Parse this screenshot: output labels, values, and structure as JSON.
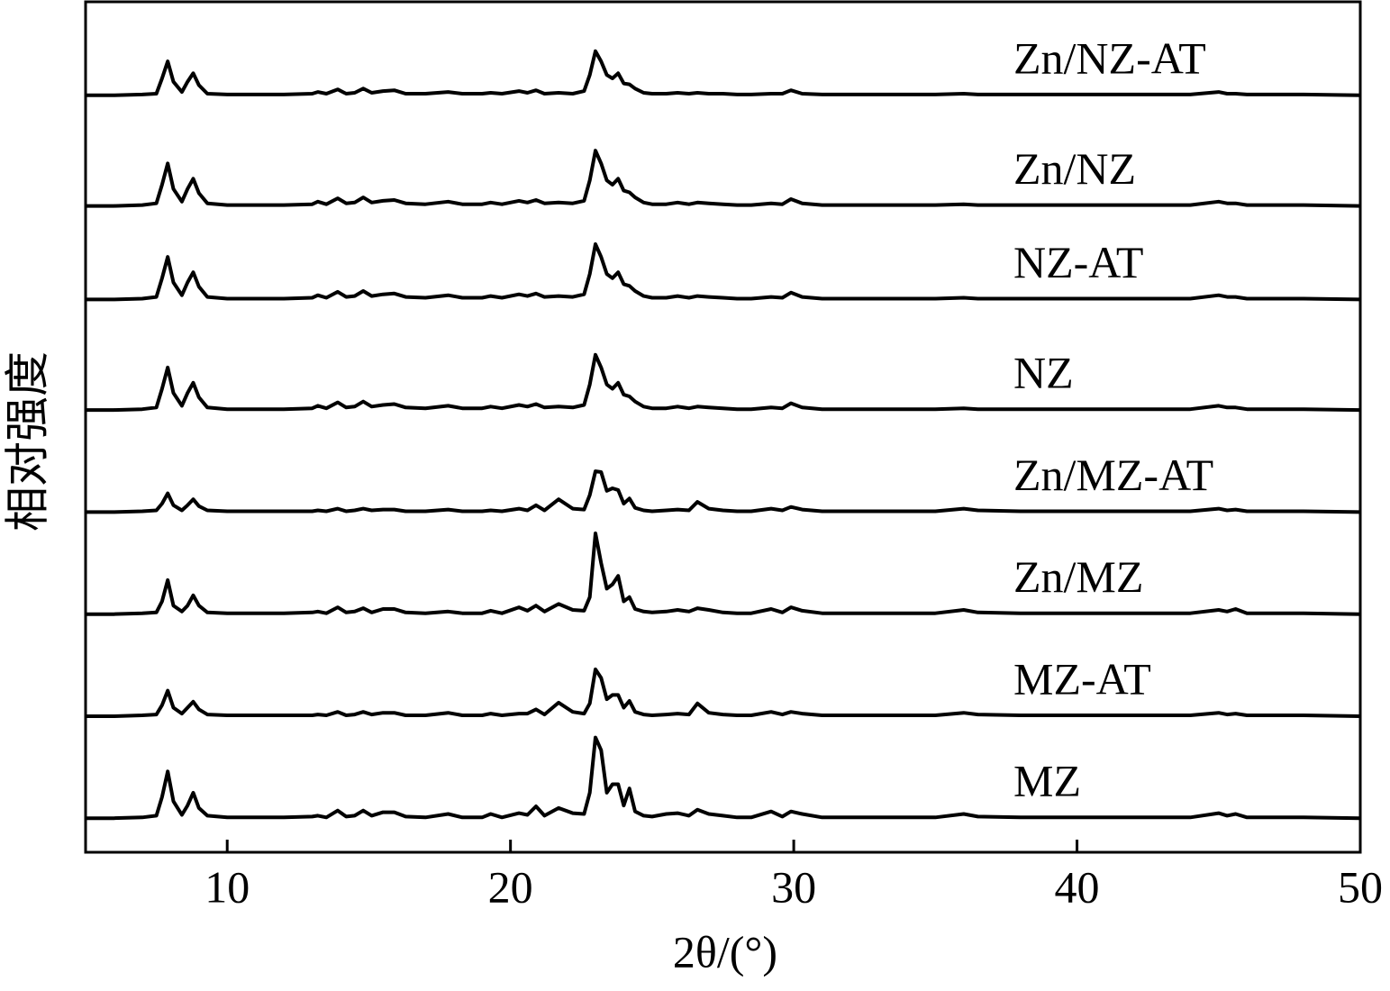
{
  "chart_data": {
    "type": "line",
    "x_label": "2θ/(°)",
    "y_label": "相对强度",
    "xlim": [
      5,
      50
    ],
    "xticks": [
      10,
      20,
      30,
      40,
      50
    ],
    "ylim": [
      0,
      100
    ],
    "x": [
      5,
      6,
      7,
      7.5,
      7.7,
      7.9,
      8.1,
      8.4,
      8.6,
      8.8,
      9,
      9.3,
      10,
      11,
      12,
      13,
      13.2,
      13.5,
      13.9,
      14.2,
      14.5,
      14.8,
      15.1,
      15.5,
      15.9,
      16.3,
      17,
      17.8,
      18.3,
      19,
      19.3,
      19.7,
      20.3,
      20.6,
      20.9,
      21.2,
      21.7,
      22.2,
      22.6,
      22.8,
      23,
      23.2,
      23.4,
      23.6,
      23.8,
      24,
      24.2,
      24.4,
      24.7,
      25,
      25.5,
      25.9,
      26.3,
      26.6,
      27,
      27.5,
      28,
      28.5,
      29.2,
      29.6,
      29.9,
      30.3,
      31,
      32,
      33,
      34,
      35,
      36,
      36.5,
      38,
      40,
      42,
      44,
      45,
      45.3,
      45.6,
      46,
      48,
      50
    ],
    "series": [
      {
        "name": "Zn/NZ-AT",
        "color": "#000000",
        "values": [
          89,
          89,
          89.1,
          89.2,
          91,
          93,
          90.6,
          89.4,
          90.6,
          91.6,
          90.2,
          89.2,
          89.1,
          89.1,
          89.1,
          89.2,
          89.4,
          89.2,
          89.7,
          89.2,
          89.3,
          89.8,
          89.3,
          89.5,
          89.6,
          89.2,
          89.2,
          89.4,
          89.2,
          89.2,
          89.3,
          89.2,
          89.5,
          89.3,
          89.6,
          89.2,
          89.3,
          89.2,
          89.5,
          91.4,
          94.2,
          93,
          91.4,
          91,
          91.6,
          90.4,
          90.3,
          89.8,
          89.3,
          89.2,
          89.2,
          89.3,
          89.2,
          89.3,
          89.2,
          89.2,
          89.1,
          89.1,
          89.2,
          89.2,
          89.6,
          89.2,
          89.1,
          89.1,
          89.1,
          89.1,
          89.1,
          89.2,
          89.1,
          89.1,
          89.1,
          89.1,
          89.1,
          89.4,
          89.2,
          89.2,
          89.1,
          89.1,
          89
        ]
      },
      {
        "name": "Zn/NZ",
        "color": "#000000",
        "values": [
          76,
          76,
          76.1,
          76.3,
          78.5,
          81,
          78,
          76.5,
          78,
          79.2,
          77.5,
          76.3,
          76.1,
          76.1,
          76.1,
          76.2,
          76.5,
          76.2,
          76.9,
          76.3,
          76.4,
          77,
          76.4,
          76.6,
          76.7,
          76.3,
          76.2,
          76.5,
          76.2,
          76.2,
          76.4,
          76.2,
          76.6,
          76.4,
          76.7,
          76.3,
          76.4,
          76.3,
          76.6,
          79,
          82.5,
          81,
          79,
          78.5,
          79.2,
          77.8,
          77.6,
          77,
          76.4,
          76.2,
          76.2,
          76.4,
          76.2,
          76.4,
          76.3,
          76.2,
          76.1,
          76.1,
          76.3,
          76.2,
          76.8,
          76.3,
          76.1,
          76.1,
          76.1,
          76.1,
          76.1,
          76.2,
          76.1,
          76.1,
          76.1,
          76.1,
          76.1,
          76.5,
          76.3,
          76.3,
          76.1,
          76.1,
          76
        ]
      },
      {
        "name": "NZ-AT",
        "color": "#000000",
        "values": [
          65,
          65,
          65.1,
          65.3,
          67.5,
          70,
          67,
          65.5,
          67,
          68.2,
          66.5,
          65.3,
          65.1,
          65.1,
          65.1,
          65.2,
          65.5,
          65.2,
          65.9,
          65.3,
          65.4,
          66,
          65.4,
          65.6,
          65.7,
          65.3,
          65.2,
          65.5,
          65.2,
          65.2,
          65.4,
          65.2,
          65.6,
          65.4,
          65.7,
          65.3,
          65.4,
          65.3,
          65.6,
          68,
          71.5,
          70,
          68,
          67.5,
          68.2,
          66.8,
          66.6,
          66,
          65.4,
          65.2,
          65.2,
          65.4,
          65.2,
          65.4,
          65.3,
          65.2,
          65.1,
          65.1,
          65.3,
          65.2,
          65.8,
          65.3,
          65.1,
          65.1,
          65.1,
          65.1,
          65.1,
          65.2,
          65.1,
          65.1,
          65.1,
          65.1,
          65.1,
          65.5,
          65.3,
          65.3,
          65.1,
          65.1,
          65
        ]
      },
      {
        "name": "NZ",
        "color": "#000000",
        "values": [
          52,
          52,
          52.1,
          52.3,
          54.5,
          57,
          54,
          52.5,
          54,
          55.2,
          53.5,
          52.3,
          52.1,
          52.1,
          52.1,
          52.2,
          52.5,
          52.2,
          52.9,
          52.3,
          52.4,
          53,
          52.4,
          52.6,
          52.7,
          52.3,
          52.2,
          52.5,
          52.2,
          52.2,
          52.4,
          52.2,
          52.6,
          52.4,
          52.7,
          52.3,
          52.4,
          52.3,
          52.6,
          55,
          58.5,
          57,
          55,
          54.5,
          55.2,
          53.8,
          53.6,
          53,
          52.4,
          52.2,
          52.2,
          52.4,
          52.2,
          52.4,
          52.3,
          52.2,
          52.1,
          52.1,
          52.3,
          52.2,
          52.8,
          52.3,
          52.1,
          52.1,
          52.1,
          52.1,
          52.1,
          52.2,
          52.1,
          52.1,
          52.1,
          52.1,
          52.1,
          52.5,
          52.3,
          52.3,
          52.1,
          52.1,
          52
        ]
      },
      {
        "name": "Zn/MZ-AT",
        "color": "#000000",
        "values": [
          40,
          40,
          40.1,
          40.2,
          41,
          42.2,
          40.8,
          40.2,
          40.8,
          41.5,
          40.7,
          40.2,
          40.1,
          40.1,
          40.1,
          40.1,
          40.2,
          40.1,
          40.4,
          40.1,
          40.2,
          40.4,
          40.2,
          40.3,
          40.3,
          40.1,
          40.1,
          40.3,
          40.1,
          40.1,
          40.2,
          40.1,
          40.4,
          40.2,
          40.8,
          40.2,
          41.5,
          40.4,
          40.3,
          42,
          44.8,
          44.7,
          42.5,
          42.8,
          42.6,
          41,
          41.6,
          40.5,
          40.2,
          40.1,
          40.2,
          40.3,
          40.2,
          41.2,
          40.4,
          40.2,
          40.1,
          40.1,
          40.4,
          40.2,
          40.6,
          40.3,
          40.1,
          40.1,
          40.1,
          40.1,
          40.1,
          40.4,
          40.2,
          40.1,
          40.1,
          40.1,
          40.1,
          40.4,
          40.2,
          40.3,
          40.1,
          40.1,
          40
        ]
      },
      {
        "name": "Zn/MZ",
        "color": "#000000",
        "values": [
          28,
          28,
          28.1,
          28.2,
          29.5,
          32,
          29,
          28.3,
          29,
          30.2,
          29,
          28.2,
          28.1,
          28.1,
          28.1,
          28.2,
          28.3,
          28.1,
          28.8,
          28.2,
          28.3,
          28.7,
          28.2,
          28.6,
          28.6,
          28.2,
          28.1,
          28.3,
          28.1,
          28.1,
          28.4,
          28.1,
          28.8,
          28.4,
          29,
          28.3,
          29.2,
          28.5,
          28.4,
          30,
          37.5,
          34,
          31,
          31.5,
          32.5,
          29.5,
          30,
          28.6,
          28.3,
          28.2,
          28.3,
          28.5,
          28.3,
          28.7,
          28.5,
          28.2,
          28.1,
          28.1,
          28.6,
          28.2,
          28.8,
          28.4,
          28.1,
          28.1,
          28.1,
          28.1,
          28.1,
          28.5,
          28.2,
          28.1,
          28.1,
          28.1,
          28.1,
          28.5,
          28.3,
          28.6,
          28.1,
          28.1,
          28
        ]
      },
      {
        "name": "MZ-AT",
        "color": "#000000",
        "values": [
          16,
          16,
          16.1,
          16.2,
          17.3,
          19,
          17,
          16.3,
          17,
          17.7,
          16.8,
          16.2,
          16.1,
          16.1,
          16.1,
          16.1,
          16.2,
          16.1,
          16.5,
          16.1,
          16.2,
          16.5,
          16.2,
          16.4,
          16.4,
          16.1,
          16.1,
          16.4,
          16.1,
          16.1,
          16.3,
          16.1,
          16.3,
          16.3,
          16.8,
          16.2,
          17.6,
          16.5,
          16.3,
          17.5,
          21.5,
          20.5,
          18,
          18.5,
          18.5,
          17,
          17.8,
          16.5,
          16.2,
          16.1,
          16.2,
          16.3,
          16.2,
          17.5,
          16.4,
          16.2,
          16.1,
          16.1,
          16.5,
          16.2,
          16.5,
          16.3,
          16.1,
          16.1,
          16.1,
          16.1,
          16.1,
          16.4,
          16.2,
          16.1,
          16.1,
          16.1,
          16.1,
          16.4,
          16.2,
          16.3,
          16.1,
          16.1,
          16
        ]
      },
      {
        "name": "MZ",
        "color": "#000000",
        "values": [
          4,
          4,
          4.1,
          4.3,
          6.5,
          9.5,
          6,
          4.4,
          5.5,
          7,
          5.2,
          4.3,
          4.1,
          4.1,
          4.1,
          4.2,
          4.3,
          4.1,
          4.9,
          4.2,
          4.3,
          4.9,
          4.3,
          4.7,
          4.7,
          4.2,
          4.1,
          4.5,
          4.1,
          4.1,
          4.5,
          4.1,
          4.6,
          4.4,
          5.4,
          4.3,
          5.2,
          4.6,
          4.5,
          7,
          13.5,
          12,
          7,
          8,
          8,
          5.5,
          7.5,
          4.8,
          4.3,
          4.2,
          4.5,
          4.6,
          4.3,
          5,
          4.5,
          4.3,
          4.1,
          4.1,
          4.8,
          4.2,
          4.8,
          4.5,
          4.1,
          4.1,
          4.1,
          4.1,
          4.1,
          4.5,
          4.2,
          4.1,
          4.1,
          4.1,
          4.1,
          4.6,
          4.3,
          4.5,
          4.1,
          4.1,
          4
        ]
      }
    ]
  }
}
